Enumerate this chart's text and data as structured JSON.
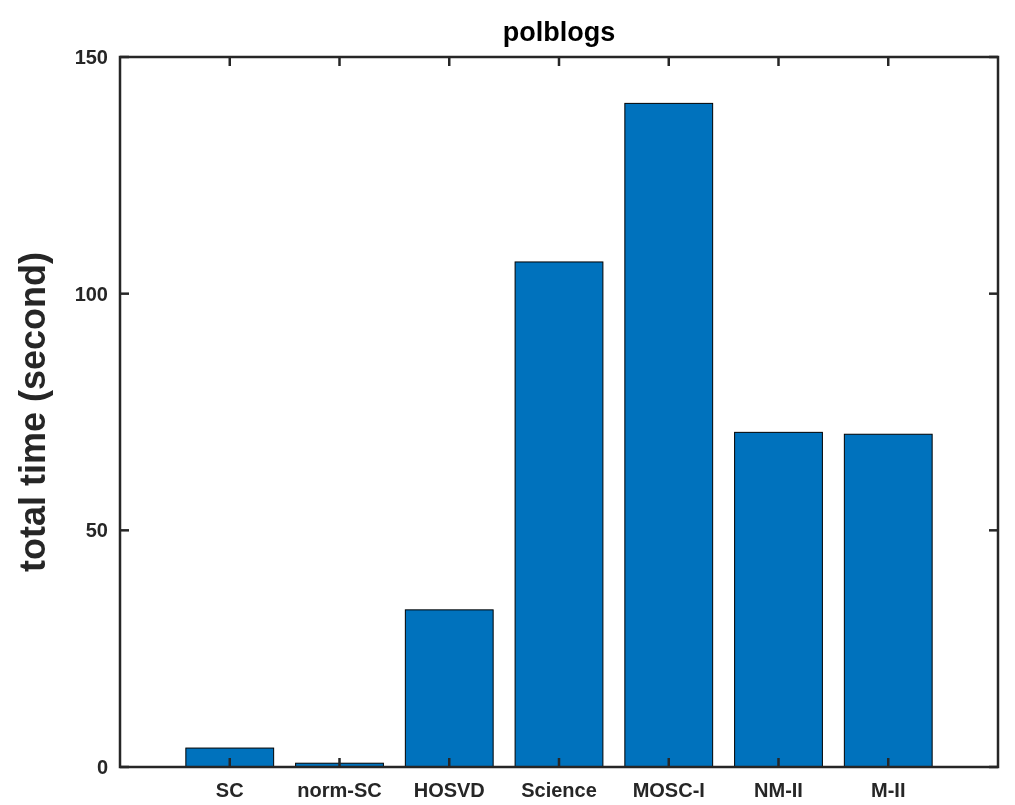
{
  "chart_data": {
    "type": "bar",
    "title": "polblogs",
    "ylabel": "total time (second)",
    "categories": [
      "SC",
      "norm-SC",
      "HOSVD",
      "Science",
      "MOSC-I",
      "NM-II",
      "M-II"
    ],
    "values": [
      4,
      0.8,
      33.2,
      106.7,
      140.2,
      70.7,
      70.3
    ],
    "color": "#0072bd",
    "ylim": [
      0,
      150
    ],
    "yticks": [
      0,
      50,
      100,
      150
    ],
    "grid": false
  }
}
